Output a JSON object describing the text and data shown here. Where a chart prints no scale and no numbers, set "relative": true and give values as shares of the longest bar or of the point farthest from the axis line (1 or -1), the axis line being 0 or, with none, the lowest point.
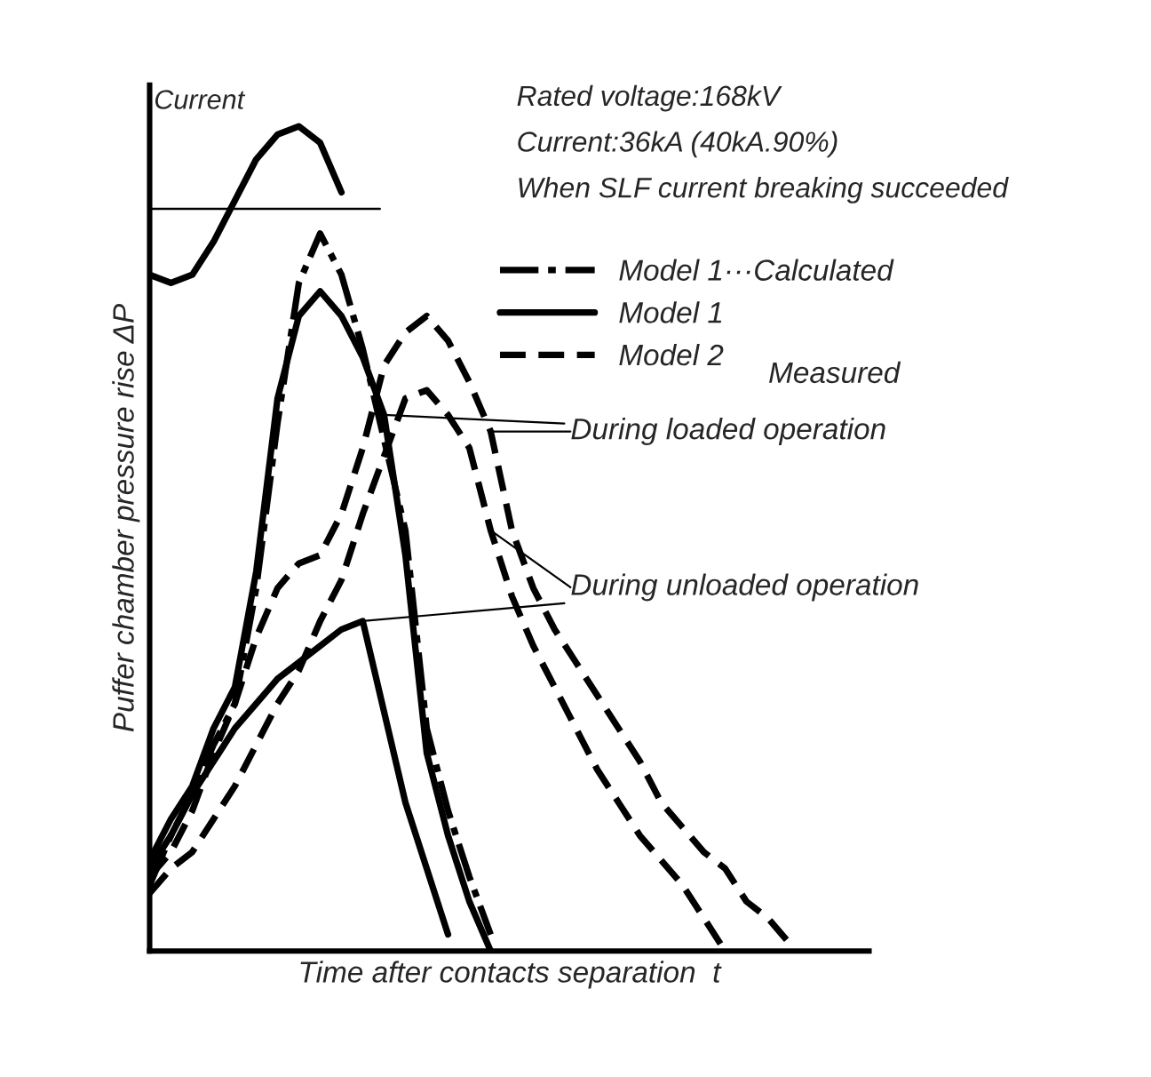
{
  "chart_data": {
    "type": "line",
    "relative": true,
    "ylabel": "Puffer chamber pressure rise ΔP",
    "xlabel": "Time after contacts separation  t",
    "categories": [
      null,
      null,
      null,
      null,
      null,
      null,
      null,
      null,
      null,
      null,
      null,
      null,
      null,
      null,
      null,
      null,
      null,
      null,
      null,
      null,
      null,
      null,
      null,
      null,
      null,
      null,
      null,
      null,
      null,
      null,
      null,
      null,
      null,
      null,
      null
    ],
    "series": [
      {
        "name": "Current",
        "color": "#000000",
        "line_style": "solid",
        "values": [
          0.82,
          0.81,
          0.82,
          0.86,
          0.91,
          0.96,
          0.99,
          1.0,
          0.98,
          0.92,
          null,
          null,
          null,
          null,
          null,
          null,
          null,
          null,
          null,
          null,
          null,
          null,
          null,
          null,
          null,
          null,
          null,
          null,
          null,
          null,
          null,
          null,
          null,
          null,
          null
        ]
      },
      {
        "name": "Model 1···Calculated",
        "color": "#000000",
        "line_style": "dashdot",
        "values": [
          0.08,
          0.14,
          0.19,
          0.25,
          0.3,
          0.44,
          0.64,
          0.81,
          0.87,
          0.82,
          0.73,
          0.62,
          0.51,
          0.27,
          0.17,
          0.09,
          0.02,
          null,
          null,
          null,
          null,
          null,
          null,
          null,
          null,
          null,
          null,
          null,
          null,
          null,
          null,
          null,
          null,
          null,
          null
        ]
      },
      {
        "name": "Model 1",
        "color": "#000000",
        "line_style": "solid",
        "values": [
          0.11,
          0.16,
          0.2,
          0.27,
          0.32,
          0.46,
          0.67,
          0.77,
          0.8,
          0.77,
          0.72,
          0.65,
          0.48,
          0.24,
          0.14,
          0.06,
          0.0,
          null,
          null,
          null,
          null,
          null,
          null,
          null,
          null,
          null,
          null,
          null,
          null,
          null,
          null,
          null,
          null,
          null,
          null
        ]
      },
      {
        "color": "#000000",
        "line_style": "solid",
        "values": [
          0.1,
          0.14,
          0.19,
          0.23,
          0.27,
          0.3,
          0.33,
          0.35,
          0.37,
          0.39,
          0.4,
          0.29,
          0.18,
          0.1,
          0.02,
          null,
          null,
          null,
          null,
          null,
          null,
          null,
          null,
          null,
          null,
          null,
          null,
          null,
          null,
          null,
          null,
          null,
          null,
          null,
          null
        ]
      },
      {
        "name": "Model 2",
        "color": "#000000",
        "line_style": "dashed",
        "values": [
          0.09,
          0.12,
          0.17,
          0.24,
          0.3,
          0.38,
          0.44,
          0.47,
          0.48,
          0.53,
          0.61,
          0.71,
          0.75,
          0.77,
          0.74,
          0.69,
          0.63,
          0.51,
          0.44,
          0.39,
          0.35,
          0.31,
          0.27,
          0.23,
          0.18,
          0.15,
          0.12,
          0.1,
          0.06,
          0.04,
          0.01,
          null,
          null,
          null,
          null
        ]
      },
      {
        "color": "#000000",
        "line_style": "dashed",
        "values": [
          0.07,
          0.1,
          0.12,
          0.16,
          0.2,
          0.25,
          0.3,
          0.34,
          0.4,
          0.45,
          0.53,
          0.6,
          0.67,
          0.68,
          0.65,
          0.61,
          0.51,
          0.43,
          0.37,
          0.32,
          0.27,
          0.22,
          0.18,
          0.14,
          0.11,
          0.08,
          0.04,
          0.0,
          null,
          null,
          null,
          null,
          null,
          null,
          null
        ]
      }
    ],
    "ref_lines": [
      {
        "axis": "y",
        "value": 0.9,
        "color": "#000000"
      }
    ],
    "annotations": [
      "Rated voltage:168kV",
      "Current:36kA (40kA.90%)",
      "When SLF current breaking succeeded",
      "Measured",
      "During loaded operation",
      "During unloaded operation"
    ],
    "legend": "top right",
    "marker": "none",
    "tick_labels": false
  }
}
